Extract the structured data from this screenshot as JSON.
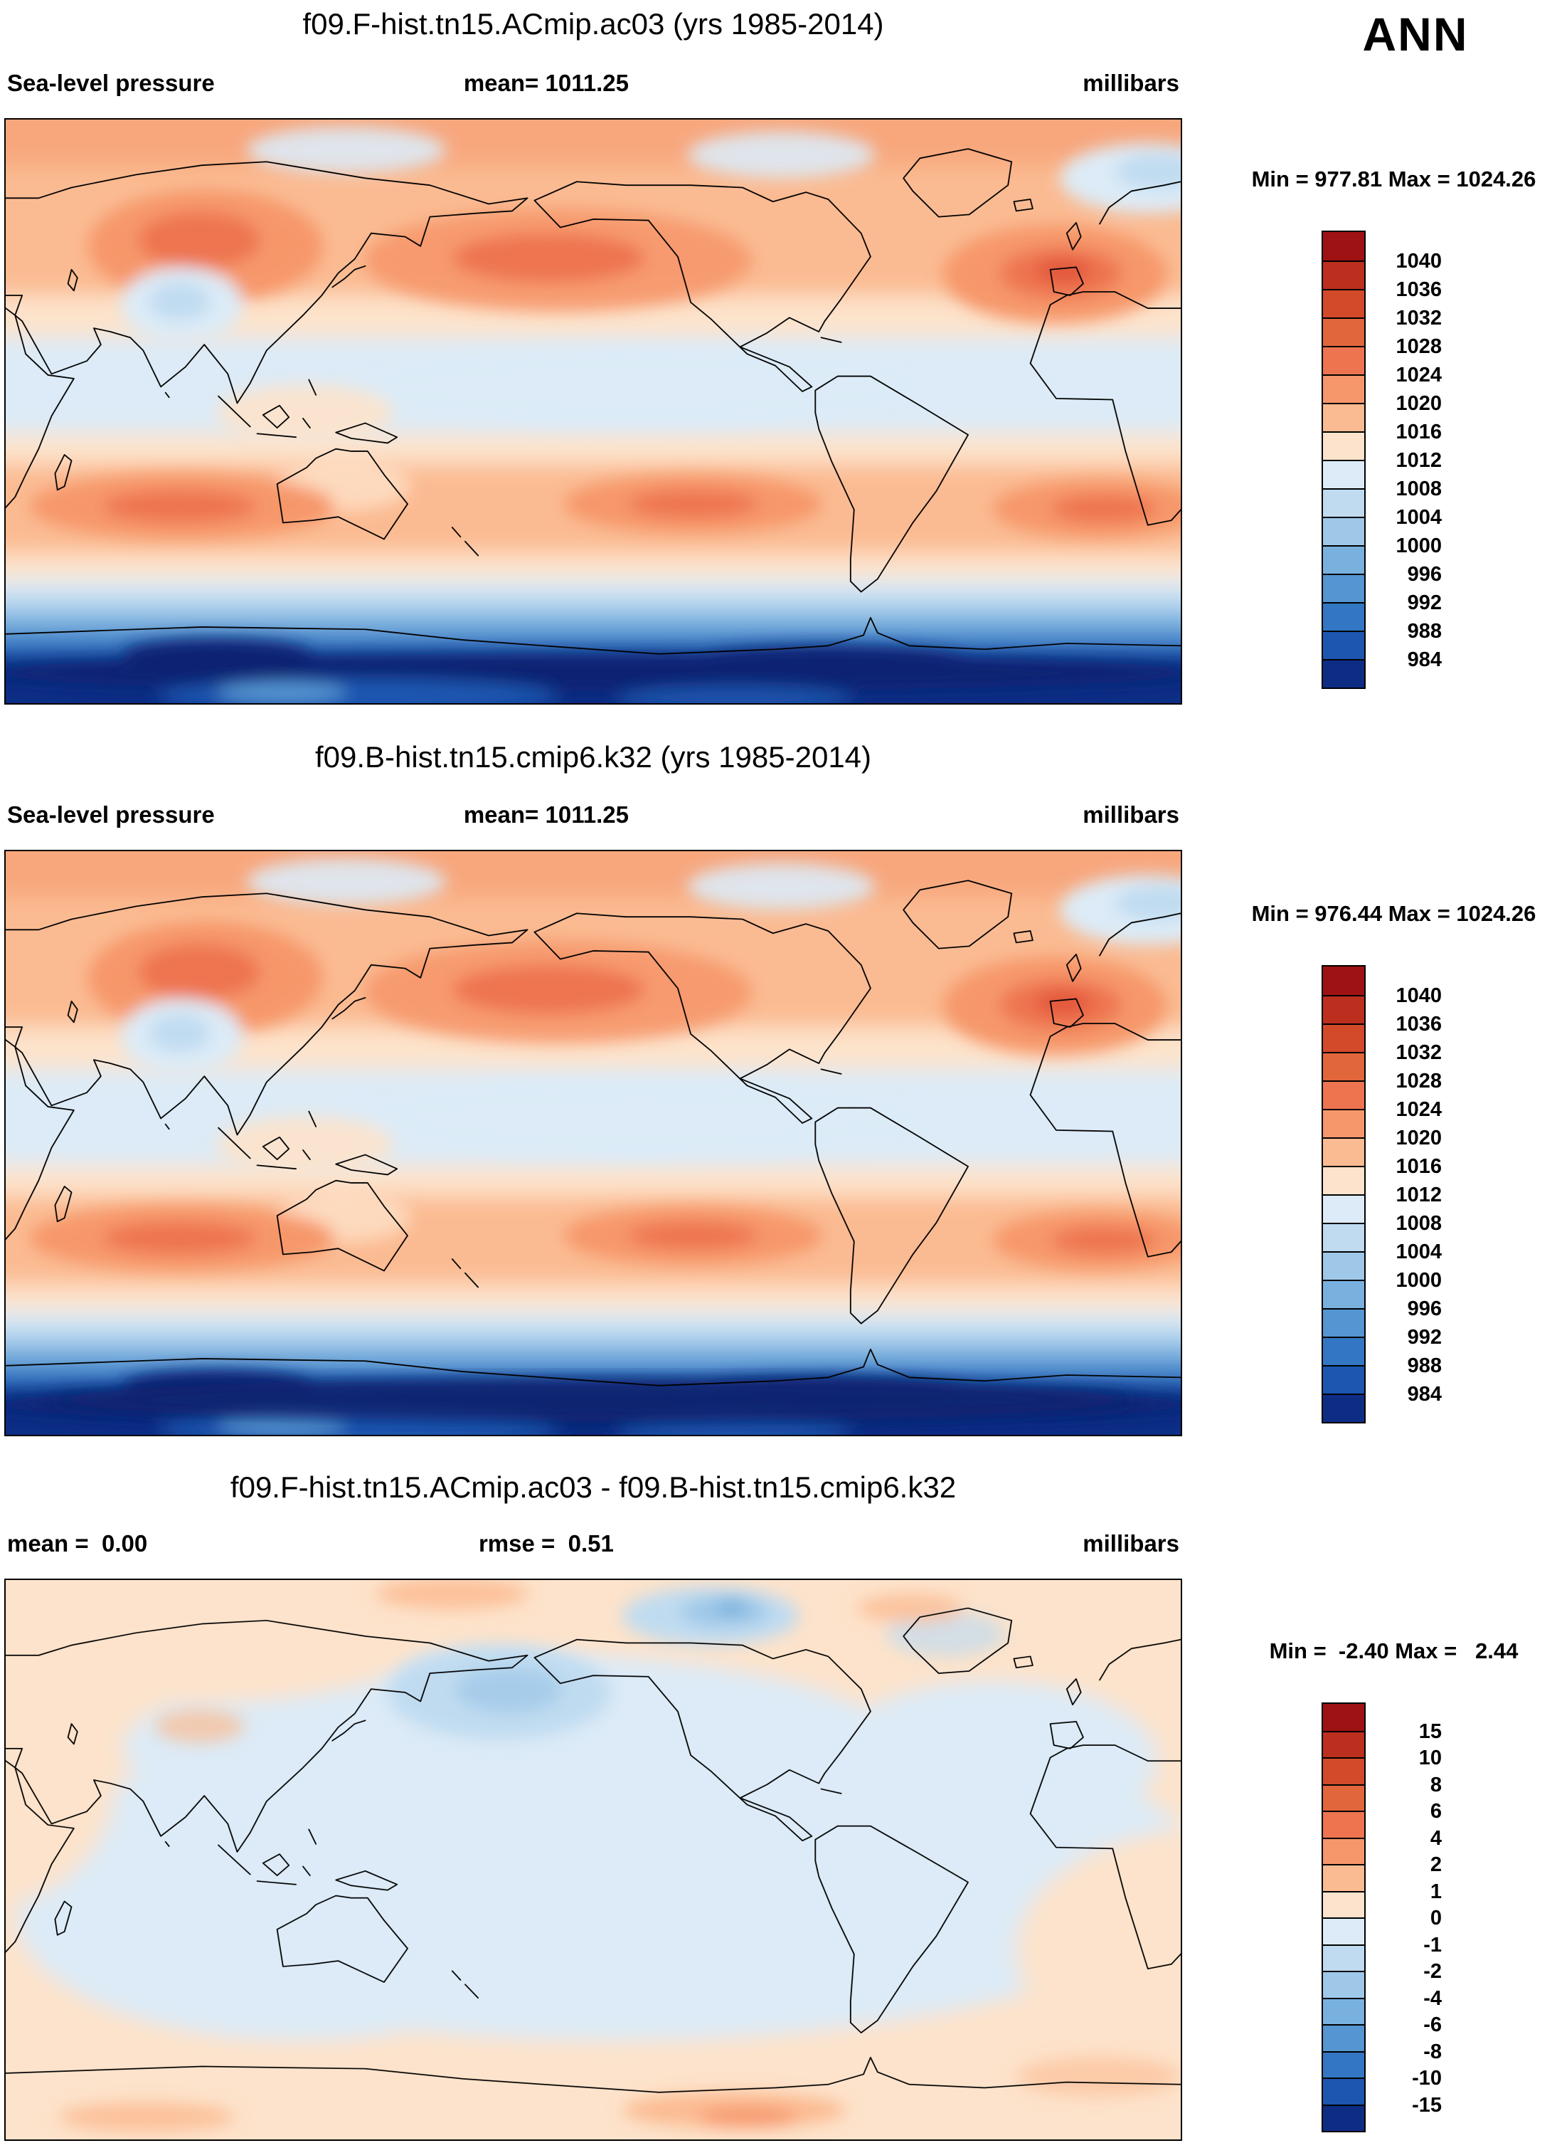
{
  "ann_label": "ANN",
  "palette_pressure": [
    "#9f1214",
    "#bc2f1e",
    "#d34a2a",
    "#e2663c",
    "#ee7450",
    "#f6976b",
    "#fbbb92",
    "#fde3cb",
    "#dcebf7",
    "#c0dbf0",
    "#9fc8e8",
    "#79b1de",
    "#5495d2",
    "#3377c4",
    "#1c56b0",
    "#0d2d85"
  ],
  "palette_diff": [
    "#9f1214",
    "#bc2f1e",
    "#d34a2a",
    "#e2663c",
    "#ee7450",
    "#f6976b",
    "#fbbb92",
    "#fde3cb",
    "#dcebf7",
    "#c0dbf0",
    "#9fc8e8",
    "#79b1de",
    "#5495d2",
    "#3377c4",
    "#1c56b0",
    "#0d2d85"
  ],
  "panels": [
    {
      "title": "f09.F-hist.tn15.ACmip.ac03 (yrs 1985-2014)",
      "left_label": "Sea-level pressure",
      "center_label": "mean= 1011.25",
      "right_label": "millibars",
      "minmax": "Min = 977.81 Max = 1024.26",
      "colorbar_labels": [
        "1040",
        "1036",
        "1032",
        "1028",
        "1024",
        "1020",
        "1016",
        "1012",
        "1008",
        "1004",
        "1000",
        "996",
        "992",
        "988",
        "984"
      ]
    },
    {
      "title": "f09.B-hist.tn15.cmip6.k32 (yrs 1985-2014)",
      "left_label": "Sea-level pressure",
      "center_label": "mean= 1011.25",
      "right_label": "millibars",
      "minmax": "Min = 976.44 Max = 1024.26",
      "colorbar_labels": [
        "1040",
        "1036",
        "1032",
        "1028",
        "1024",
        "1020",
        "1016",
        "1012",
        "1008",
        "1004",
        "1000",
        "996",
        "992",
        "988",
        "984"
      ]
    },
    {
      "title": "f09.F-hist.tn15.ACmip.ac03 - f09.B-hist.tn15.cmip6.k32",
      "left_label": "mean =  0.00",
      "center_label": "rmse =  0.51",
      "right_label": "millibars",
      "minmax": "Min =  -2.40 Max =   2.44",
      "colorbar_labels": [
        "15",
        "10",
        "8",
        "6",
        "4",
        "2",
        "1",
        "0",
        "-1",
        "-2",
        "-4",
        "-6",
        "-8",
        "-10",
        "-15"
      ]
    }
  ],
  "chart_data": [
    {
      "type": "heatmap",
      "subtype": "filled-contour global latitude-longitude map",
      "title": "f09.F-hist.tn15.ACmip.ac03 (yrs 1985-2014)",
      "variable": "Sea-level pressure",
      "units": "millibars",
      "season": "ANN",
      "mean": 1011.25,
      "min": 977.81,
      "max": 1024.26,
      "contour_levels": [
        984,
        988,
        992,
        996,
        1000,
        1004,
        1008,
        1012,
        1016,
        1020,
        1024,
        1028,
        1032,
        1036,
        1040
      ],
      "legend_position": "right",
      "notes": "Orange high pressure (1016-1024 mb) over subtropical oceans, Siberia and North Atlantic/Pacific highs; light blue (1008-1012 mb) tropics; deep blue circumpolar belt (<988 mb) around Antarctica"
    },
    {
      "type": "heatmap",
      "subtype": "filled-contour global latitude-longitude map",
      "title": "f09.B-hist.tn15.cmip6.k32 (yrs 1985-2014)",
      "variable": "Sea-level pressure",
      "units": "millibars",
      "season": "ANN",
      "mean": 1011.25,
      "min": 976.44,
      "max": 1024.26,
      "contour_levels": [
        984,
        988,
        992,
        996,
        1000,
        1004,
        1008,
        1012,
        1016,
        1020,
        1024,
        1028,
        1032,
        1036,
        1040
      ],
      "legend_position": "right",
      "notes": "Nearly identical pattern to top panel"
    },
    {
      "type": "heatmap",
      "subtype": "filled-contour global difference map",
      "title": "f09.F-hist.tn15.ACmip.ac03 - f09.B-hist.tn15.cmip6.k32",
      "variable": "Sea-level pressure difference",
      "units": "millibars",
      "mean": 0.0,
      "rmse": 0.51,
      "min": -2.4,
      "max": 2.44,
      "contour_levels": [
        -15,
        -10,
        -8,
        -6,
        -4,
        -2,
        -1,
        0,
        1,
        2,
        4,
        6,
        8,
        10,
        15
      ],
      "legend_position": "right",
      "notes": "Differences mostly between -1 and +1 mb; weak negative anomalies over North Pacific and Canadian Arctic, weak positive band along top and bottom edges"
    }
  ]
}
